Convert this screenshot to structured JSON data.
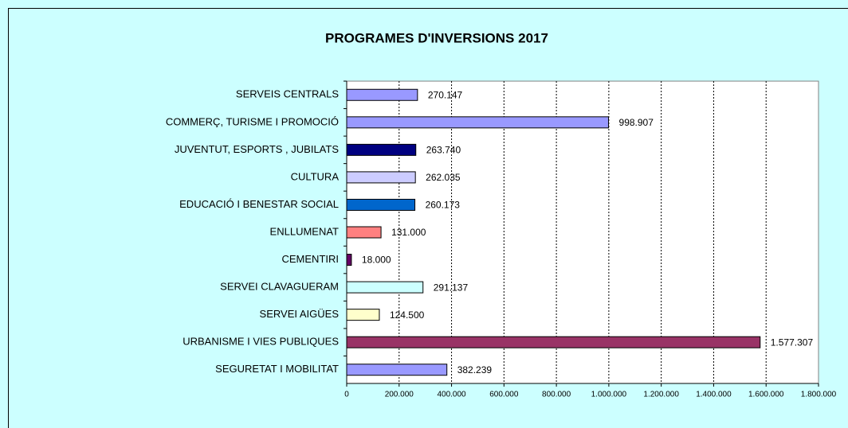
{
  "chart_data": {
    "type": "barh",
    "title": "PROGRAMES D'INVERSIONS 2017",
    "categories": [
      "SERVEIS CENTRALS",
      "COMMERÇ, TURISME I PROMOCIÓ",
      "JUVENTUT, ESPORTS , JUBILATS",
      "CULTURA",
      "EDUCACIÓ I BENESTAR SOCIAL",
      "ENLLUMENAT",
      "CEMENTIRI",
      "SERVEI CLAVAGUERAM",
      "SERVEI AIGÜES",
      "URBANISME I VIES PUBLIQUES",
      "SEGURETAT I MOBILITAT"
    ],
    "values": [
      270147,
      998907,
      263740,
      262035,
      260173,
      131000,
      18000,
      291137,
      124500,
      1577307,
      382239
    ],
    "value_labels": [
      "270.147",
      "998.907",
      "263.740",
      "262.035",
      "260.173",
      "131.000",
      "18.000",
      "291.137",
      "124.500",
      "1.577.307",
      "382.239"
    ],
    "colors": [
      "#9999ff",
      "#9999ff",
      "#000080",
      "#ccccff",
      "#0066cc",
      "#ff8080",
      "#660066",
      "#ccffff",
      "#ffffcc",
      "#993366",
      "#9999ff"
    ],
    "xlim": [
      0,
      1800000
    ],
    "xticks": [
      0,
      {
        "value": 200000,
        "label": "200.000"
      },
      {
        "value": 400000,
        "label": "400.000"
      },
      {
        "value": 600000,
        "label": "600.000"
      },
      {
        "value": 800000,
        "label": "800.000"
      },
      {
        "value": 1000000,
        "label": "1.000.000"
      },
      {
        "value": 1200000,
        "label": "1.200.000"
      },
      {
        "value": 1400000,
        "label": "1.400.000"
      },
      {
        "value": 1600000,
        "label": "1.600.000"
      },
      {
        "value": 1800000,
        "label": "1.800.000"
      }
    ],
    "grid": true
  }
}
